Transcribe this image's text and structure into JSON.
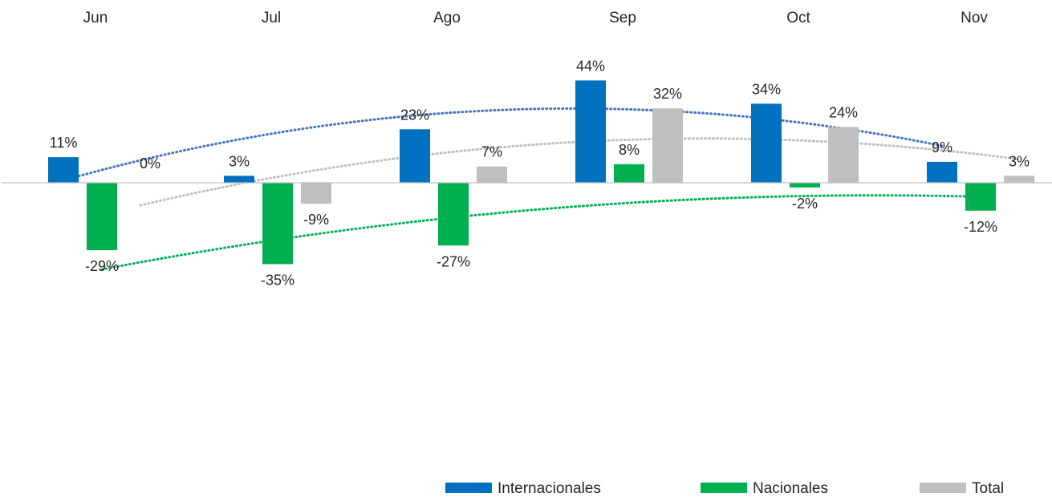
{
  "chart_data": {
    "type": "bar",
    "categories": [
      "Jun",
      "Jul",
      "Ago",
      "Sep",
      "Oct",
      "Nov"
    ],
    "series": [
      {
        "name": "Internacionales",
        "color": "#0070C0",
        "values": [
          11,
          3,
          23,
          44,
          34,
          9
        ]
      },
      {
        "name": "Nacionales",
        "color": "#00B050",
        "values": [
          -29,
          -35,
          -27,
          8,
          -2,
          -12
        ]
      },
      {
        "name": "Total",
        "color": "#BFBFBF",
        "values": [
          0,
          -9,
          7,
          32,
          24,
          3
        ]
      }
    ],
    "value_suffix": "%",
    "trendlines": "polynomial, dotted, one per series",
    "category_axis_position": "top",
    "legend_position": "bottom-right",
    "grid": false
  }
}
